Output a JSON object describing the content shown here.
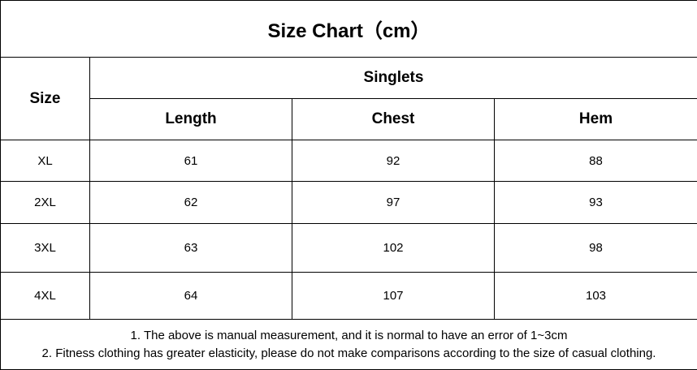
{
  "header": {
    "title": "Size Chart（cm）"
  },
  "table": {
    "size_header": "Size",
    "group_header": "Singlets",
    "columns": [
      "Length",
      "Chest",
      "Hem"
    ],
    "rows": [
      [
        "XL",
        61,
        92,
        88
      ],
      [
        "2XL",
        62,
        97,
        93
      ],
      [
        "3XL",
        63,
        102,
        98
      ],
      [
        "4XL",
        64,
        107,
        103
      ]
    ]
  },
  "notes": [
    "1. The above is manual measurement, and it is normal to have an error of 1~3cm",
    "2. Fitness clothing has greater elasticity, please do not make comparisons according to the size of casual clothing."
  ]
}
